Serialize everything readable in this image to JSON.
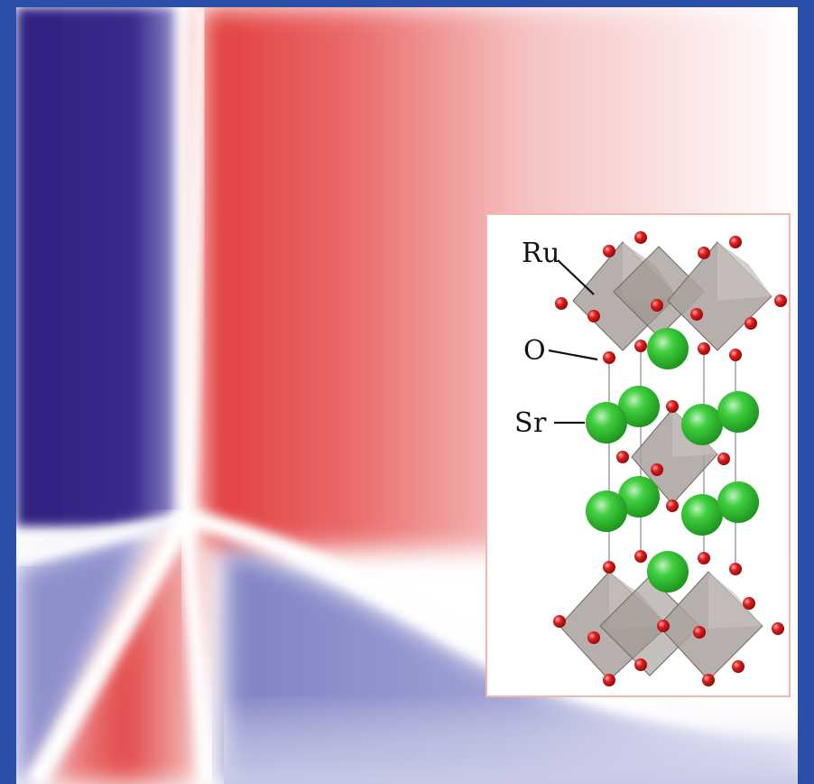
{
  "figure": {
    "background_colors": {
      "frame": "#2a4fa8",
      "negative": "#3a2a8a",
      "positive": "#e84c4c",
      "zero": "#ffffff"
    }
  },
  "inset": {
    "labels": {
      "ru": "Ru",
      "o": "O",
      "sr": "Sr"
    },
    "atom_colors": {
      "ru_octahedron": "#a09893",
      "oxygen": "#d11a1a",
      "strontium": "#2eb82e"
    }
  }
}
